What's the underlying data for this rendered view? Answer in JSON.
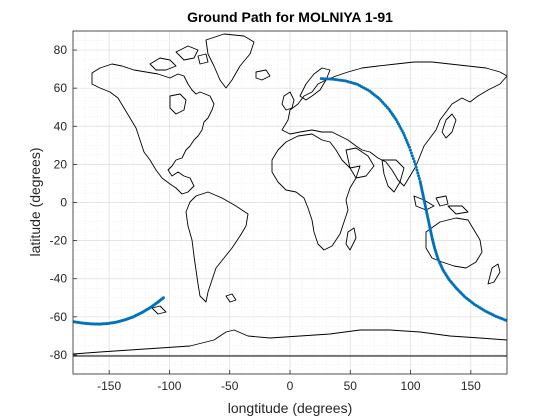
{
  "chart_data": {
    "type": "scatter",
    "title": "Ground Path for MOLNIYA 1-91",
    "xlabel": "longtitude (degrees)",
    "ylabel": "latitude (degrees)",
    "xlim": [
      -180,
      180
    ],
    "ylim": [
      -90,
      90
    ],
    "xticks": [
      -150,
      -100,
      -50,
      0,
      50,
      100,
      150
    ],
    "yticks": [
      -80,
      -60,
      -40,
      -20,
      0,
      20,
      40,
      60,
      80
    ],
    "grid": true,
    "minor_grid": true,
    "colors": {
      "track": "#0072BD",
      "coast": "#000000",
      "grid": "#d9d9d9"
    },
    "series": [
      {
        "x": [
          -180,
          -172,
          -165,
          -158,
          -151,
          -144,
          -137,
          -130,
          -123,
          -116,
          -110,
          -105
        ],
        "y": [
          -62.5,
          -63.3,
          -63.7,
          -63.8,
          -63.5,
          -62.8,
          -61.6,
          -60.0,
          -57.8,
          -55.2,
          -52.5,
          -50.0
        ]
      },
      {
        "x": [
          26,
          36,
          46,
          56,
          66,
          74,
          82,
          88,
          94,
          99,
          104,
          108,
          110,
          112,
          114,
          116,
          118,
          120,
          123,
          127,
          132,
          138,
          145,
          153,
          162,
          171,
          180
        ],
        "y": [
          65,
          64.7,
          63.8,
          62,
          58.5,
          54.5,
          49,
          43.5,
          36.5,
          29,
          20,
          11,
          5,
          -1,
          -7,
          -13,
          -19,
          -24,
          -30,
          -35.5,
          -40.5,
          -45,
          -49.5,
          -53.5,
          -57,
          -59.8,
          -62
        ]
      }
    ]
  }
}
